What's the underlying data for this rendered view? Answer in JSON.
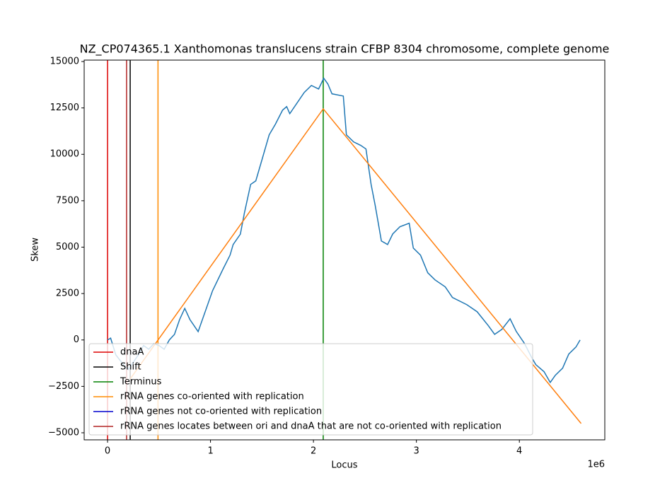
{
  "chart_data": {
    "type": "line",
    "title": "NZ_CP074365.1 Xanthomonas translucens strain CFBP 8304 chromosome, complete genome",
    "xlabel": "Locus",
    "ylabel": "Skew",
    "x_offset_label": "1e6",
    "xlim": [
      -227000,
      4830000
    ],
    "ylim": [
      -5381,
      15076
    ],
    "xticks": [
      {
        "value": 0,
        "label": "0"
      },
      {
        "value": 1000000,
        "label": "1"
      },
      {
        "value": 2000000,
        "label": "2"
      },
      {
        "value": 3000000,
        "label": "3"
      },
      {
        "value": 4000000,
        "label": "4"
      }
    ],
    "yticks": [
      {
        "value": -5000,
        "label": "−5000"
      },
      {
        "value": -2500,
        "label": "−2500"
      },
      0,
      2500,
      5000,
      7500,
      10000,
      12500,
      15000
    ],
    "series": [
      {
        "color": "#1f77b4",
        "x": [
          0,
          30000,
          80000,
          150000,
          200000,
          250000,
          300000,
          350000,
          400000,
          450000,
          500000,
          550000,
          600000,
          650000,
          700000,
          750000,
          800000,
          880000,
          1020000,
          1120000,
          1190000,
          1220000,
          1290000,
          1330000,
          1390000,
          1440000,
          1500000,
          1570000,
          1630000,
          1700000,
          1740000,
          1770000,
          1840000,
          1910000,
          1980000,
          2050000,
          2100000,
          2140000,
          2180000,
          2290000,
          2320000,
          2390000,
          2460000,
          2510000,
          2560000,
          2600000,
          2660000,
          2720000,
          2770000,
          2840000,
          2930000,
          2970000,
          3040000,
          3110000,
          3180000,
          3280000,
          3350000,
          3490000,
          3590000,
          3700000,
          3760000,
          3830000,
          3910000,
          3970000,
          4050000,
          4120000,
          4160000,
          4240000,
          4300000,
          4350000,
          4420000,
          4480000,
          4550000,
          4590000
        ],
        "values": [
          0,
          100,
          -800,
          -1300,
          -1600,
          -1200,
          -800,
          -300,
          -500,
          -200,
          -300,
          -500,
          0,
          300,
          1100,
          1700,
          1100,
          450,
          2650,
          3800,
          4570,
          5140,
          5700,
          6860,
          8380,
          8570,
          9710,
          11050,
          11620,
          12380,
          12570,
          12190,
          12760,
          13330,
          13710,
          13520,
          14100,
          13790,
          13260,
          13140,
          11050,
          10670,
          10480,
          10290,
          8380,
          7240,
          5330,
          5140,
          5710,
          6100,
          6290,
          4950,
          4570,
          3620,
          3240,
          2860,
          2290,
          1900,
          1520,
          760,
          300,
          570,
          1140,
          460,
          -190,
          -950,
          -1330,
          -1710,
          -2290,
          -1900,
          -1520,
          -760,
          -380,
          0
        ]
      },
      {
        "color": "#ff7f0e",
        "x": [
          220000,
          2095000,
          4600000
        ],
        "values": [
          -2100,
          12450,
          -4500
        ]
      }
    ],
    "markers": [
      {
        "name": "dnaA",
        "color": "#dd0000",
        "x": [
          0
        ]
      },
      {
        "name": "Shift",
        "color": "#000000",
        "x": [
          220000
        ]
      },
      {
        "name": "Terminus",
        "color": "#008000",
        "x": [
          2095000
        ]
      },
      {
        "name": "rRNA genes co-oriented with replication",
        "color": "#ff8c00",
        "x": [
          490000
        ]
      },
      {
        "name": "rRNA genes not co-oriented with replication",
        "color": "#0000cd",
        "x": []
      },
      {
        "name": "rRNA genes locates between ori and dnaA that are not co-oriented with replication",
        "color": "#b22222",
        "x": [
          185000
        ]
      }
    ]
  }
}
